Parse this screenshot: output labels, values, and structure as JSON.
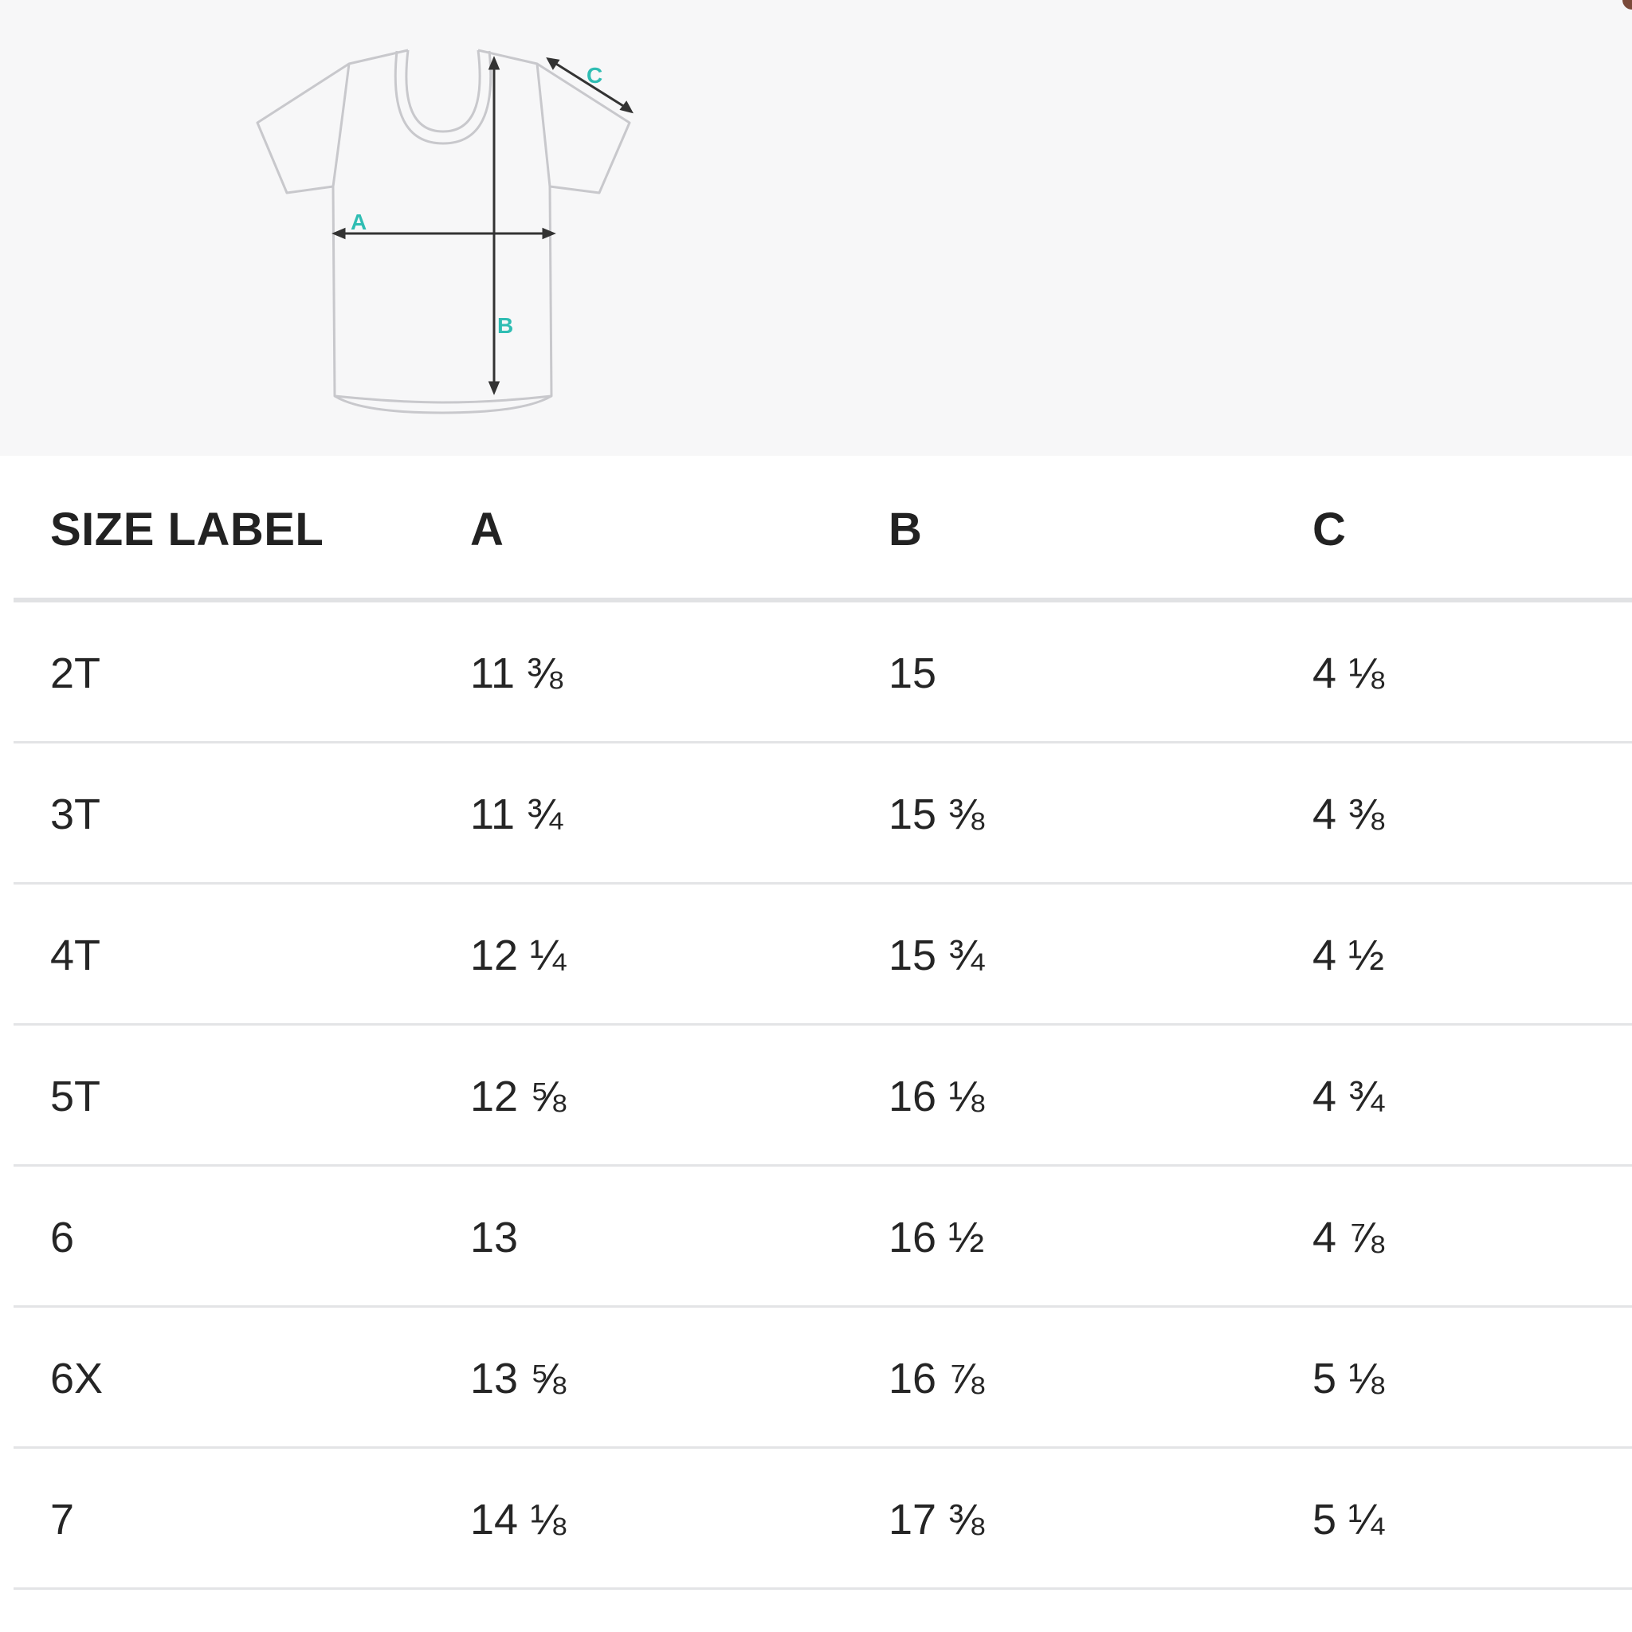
{
  "diagram": {
    "labels": {
      "a": "A",
      "b": "B",
      "c": "C"
    },
    "outline_color": "#c8c8cc",
    "arrow_color": "#333333",
    "label_color": "#2fbdb3"
  },
  "table": {
    "headers": [
      "SIZE LABEL",
      "A",
      "B",
      "C"
    ],
    "rows": [
      [
        "2T",
        "11 ⅜",
        "15",
        "4 ⅛"
      ],
      [
        "3T",
        "11 ¾",
        "15 ⅜",
        "4 ⅜"
      ],
      [
        "4T",
        "12 ¼",
        "15 ¾",
        "4 ½"
      ],
      [
        "5T",
        "12 ⅝",
        "16 ⅛",
        "4 ¾"
      ],
      [
        "6",
        "13",
        "16 ½",
        "4 ⅞"
      ],
      [
        "6X",
        "13 ⅝",
        "16 ⅞",
        "5 ⅛"
      ],
      [
        "7",
        "14 ⅛",
        "17 ⅜",
        "5 ¼"
      ]
    ]
  }
}
